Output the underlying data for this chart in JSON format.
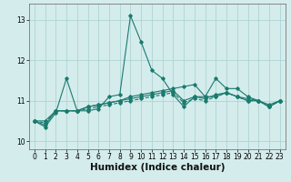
{
  "xlabel": "Humidex (Indice chaleur)",
  "background_color": "#d4ecec",
  "grid_color": "#b0d4d4",
  "line_color": "#1a7a6e",
  "x": [
    0,
    1,
    2,
    3,
    4,
    5,
    6,
    7,
    8,
    9,
    10,
    11,
    12,
    13,
    14,
    15,
    16,
    17,
    18,
    19,
    20,
    21,
    22,
    23
  ],
  "series": [
    [
      10.5,
      10.35,
      10.7,
      11.55,
      10.75,
      10.75,
      10.8,
      11.1,
      11.15,
      13.1,
      12.45,
      11.75,
      11.55,
      11.15,
      10.85,
      11.1,
      11.1,
      11.55,
      11.3,
      11.3,
      11.1,
      11.0,
      10.85,
      11.0
    ],
    [
      10.5,
      10.4,
      10.75,
      10.75,
      10.75,
      10.85,
      10.9,
      10.95,
      11.0,
      11.1,
      11.15,
      11.2,
      11.25,
      11.3,
      11.35,
      11.4,
      11.1,
      11.1,
      11.2,
      11.1,
      11.05,
      11.0,
      10.9,
      11.0
    ],
    [
      10.5,
      10.5,
      10.75,
      10.75,
      10.75,
      10.85,
      10.9,
      10.95,
      11.0,
      11.05,
      11.1,
      11.15,
      11.2,
      11.25,
      11.0,
      11.1,
      11.05,
      11.15,
      11.2,
      11.1,
      11.0,
      11.0,
      10.85,
      11.0
    ],
    [
      10.5,
      10.45,
      10.75,
      10.75,
      10.75,
      10.8,
      10.85,
      10.9,
      10.95,
      11.0,
      11.05,
      11.1,
      11.15,
      11.2,
      10.95,
      11.05,
      11.0,
      11.1,
      11.2,
      11.1,
      11.0,
      11.0,
      10.85,
      11.0
    ]
  ],
  "ylim": [
    9.8,
    13.4
  ],
  "yticks": [
    10,
    11,
    12,
    13
  ],
  "xticks": [
    0,
    1,
    2,
    3,
    4,
    5,
    6,
    7,
    8,
    9,
    10,
    11,
    12,
    13,
    14,
    15,
    16,
    17,
    18,
    19,
    20,
    21,
    22,
    23
  ],
  "tick_fontsize": 5.5,
  "xlabel_fontsize": 7.5
}
